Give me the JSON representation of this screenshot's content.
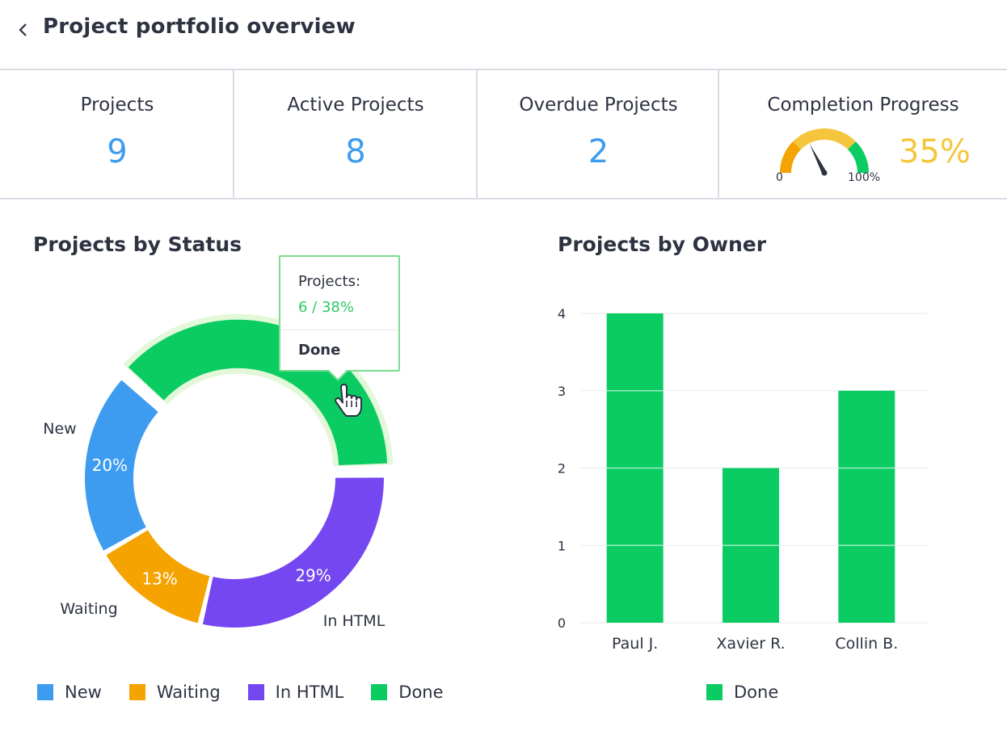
{
  "header": {
    "title": "Project portfolio overview",
    "back_icon": "chevron-left-icon"
  },
  "kpis": {
    "projects": {
      "label": "Projects",
      "value": "9"
    },
    "active": {
      "label": "Active Projects",
      "value": "8"
    },
    "overdue": {
      "label": "Overdue Projects",
      "value": "2"
    },
    "completion": {
      "label": "Completion Progress",
      "value": "35%",
      "fraction": 0.35,
      "min_label": "0",
      "max_label": "100%",
      "color": "#f5c63d"
    }
  },
  "status_chart": {
    "title": "Projects by Status",
    "tooltip": {
      "label": "Projects:",
      "value": "6 / 38%",
      "status": "Done"
    },
    "legend": [
      "New",
      "Waiting",
      "In HTML",
      "Done"
    ]
  },
  "owner_chart": {
    "title": "Projects by Owner",
    "legend": [
      "Done"
    ]
  },
  "chart_data": [
    {
      "type": "pie",
      "title": "Projects by Status",
      "categories": [
        "New",
        "Waiting",
        "In HTML",
        "Done"
      ],
      "values": [
        20,
        13,
        29,
        38
      ],
      "labels": [
        "20%",
        "13%",
        "29%",
        ""
      ],
      "colors": [
        "#3d9cf0",
        "#f5a300",
        "#7447f0",
        "#0bcc63"
      ],
      "highlighted": "Done"
    },
    {
      "type": "bar",
      "title": "Projects by Owner",
      "categories": [
        "Paul J.",
        "Xavier R.",
        "Collin B."
      ],
      "series": [
        {
          "name": "Done",
          "values": [
            4,
            2,
            3
          ]
        }
      ],
      "yticks": [
        "0",
        "1",
        "2",
        "3",
        "4"
      ],
      "ylim": [
        0,
        4
      ],
      "grid": true,
      "color": "#0bcc63"
    }
  ]
}
